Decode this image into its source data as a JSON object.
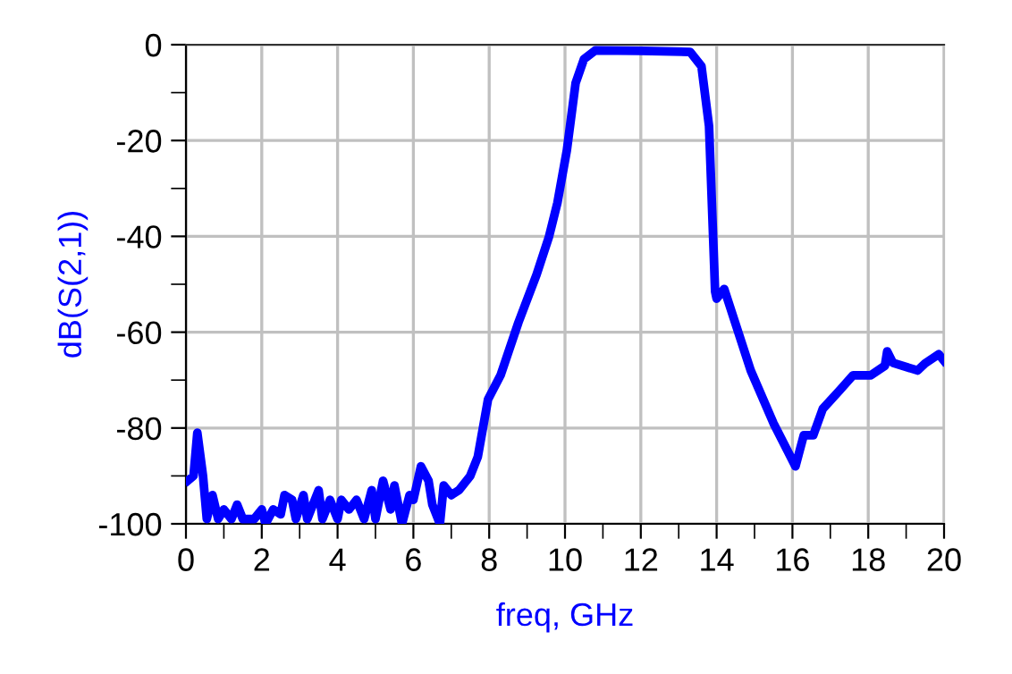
{
  "chart_data": {
    "type": "line",
    "xlabel": "freq, GHz",
    "ylabel": "dB(S(2,1))",
    "xlim": [
      0,
      20
    ],
    "ylim": [
      -100,
      0
    ],
    "xticks": [
      0,
      2,
      4,
      6,
      8,
      10,
      12,
      14,
      16,
      18,
      20
    ],
    "yticks": [
      -100,
      -80,
      -60,
      -40,
      -20,
      0
    ],
    "grid": true,
    "legend": false,
    "marker": "none",
    "line_style": "solid",
    "series": [
      {
        "color": "#0000ff",
        "x": [
          0.05,
          0.2,
          0.3,
          0.45,
          0.55,
          0.7,
          0.85,
          1.0,
          1.2,
          1.35,
          1.5,
          1.8,
          2.0,
          2.1,
          2.3,
          2.5,
          2.6,
          2.8,
          2.9,
          3.1,
          3.2,
          3.5,
          3.6,
          3.8,
          4.0,
          4.1,
          4.3,
          4.5,
          4.7,
          4.9,
          5.0,
          5.2,
          5.4,
          5.5,
          5.7,
          5.9,
          6.0,
          6.2,
          6.4,
          6.5,
          6.7,
          6.8,
          7.0,
          7.2,
          7.5,
          7.7,
          7.97,
          8.3,
          8.77,
          9.25,
          9.58,
          9.8,
          10.05,
          10.28,
          10.5,
          10.8,
          12.0,
          13.3,
          13.6,
          13.8,
          13.96,
          14.0,
          14.2,
          14.9,
          15.5,
          16.08,
          16.3,
          16.55,
          16.8,
          17.26,
          17.6,
          18.07,
          18.44,
          18.5,
          18.65,
          19.3,
          19.5,
          19.86,
          20.0
        ],
        "values": [
          -91,
          -90,
          -81,
          -90,
          -99,
          -94,
          -99,
          -97,
          -99,
          -96,
          -99,
          -99,
          -97,
          -100,
          -97,
          -98,
          -94,
          -95,
          -99,
          -94,
          -99,
          -93,
          -99,
          -95,
          -99,
          -95,
          -97,
          -95,
          -99,
          -93,
          -99,
          -91,
          -97,
          -92,
          -100,
          -94,
          -95,
          -88,
          -91,
          -96,
          -100,
          -92,
          -94,
          -93,
          -90,
          -86,
          -74,
          -69,
          -58,
          -48,
          -40,
          -33,
          -22,
          -8,
          -3,
          -1.2,
          -1.3,
          -1.5,
          -4.5,
          -17,
          -51.5,
          -53,
          -51,
          -68,
          -79,
          -88,
          -81.5,
          -81.5,
          -76,
          -72,
          -69,
          -69,
          -67,
          -64,
          -66.4,
          -68,
          -66.5,
          -64.6,
          -66
        ]
      }
    ]
  }
}
